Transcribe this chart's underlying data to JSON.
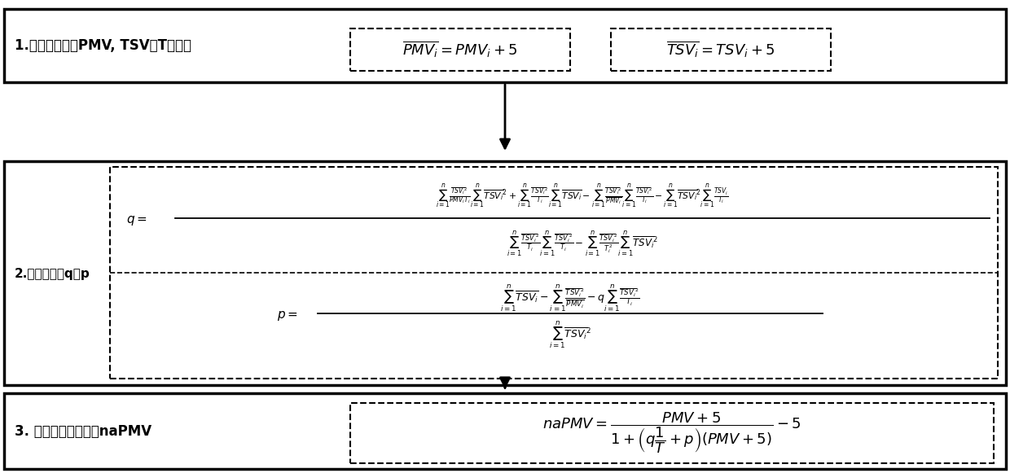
{
  "background_color": "#ffffff",
  "border_color": "#000000",
  "box1_label": "1.预处理采集的PMV, TSV和T数据组",
  "box2_label": "2.计算常参数q和p",
  "box3_label": "3. 构建新热舒适模型naPMV",
  "formula_pmv": "$\\overline{PMV_i} = PMV_i + 5$",
  "formula_tsv": "$\\overline{TSV_i} = TSV_i + 5$",
  "formula_q_num": "$\\sum_{i=1}^{n}\\frac{\\overline{TSV_i}^2}{PMV_iT_i}\\sum_{i=1}^{n}\\overline{TSV_i}^2 + \\sum_{i=1}^{n}\\frac{\\overline{TSV_i}^2}{T_i}\\sum_{i=1}^{n}\\overline{TSV_i} - \\sum_{i=1}^{n}\\frac{\\overline{TSV_i}^2}{\\overline{PMV_i}}\\sum_{i=1}^{n}\\frac{\\overline{TSV_i}^2}{T_i} - \\sum_{i=1}^{n}\\overline{TSV_i}^2\\sum_{i=1}^{n}\\frac{TSV_i}{T_i}$",
  "formula_q_den": "$\\sum_{i=1}^{n}\\frac{\\overline{TSV_i}^2}{T_i}\\sum_{i=1}^{n}\\frac{\\overline{TSV_i}^2}{T_i} - \\sum_{i=1}^{n}\\frac{\\overline{TSV_i}^2}{T_i^2}\\sum_{i=1}^{n}\\overline{TSV_i}^2$",
  "formula_p_num": "$\\sum_{i=1}^{n}\\overline{TSV_i} - \\sum_{i=1}^{n}\\frac{\\overline{TSV_i}^2}{\\overline{PMV_i}} - q\\sum_{i=1}^{n}\\frac{\\overline{TSV_i}^2}{T_i}$",
  "formula_p_den": "$\\sum_{i=1}^{n}\\overline{TSV_i}^2$",
  "formula_napmv": "$naPMV = \\dfrac{PMV+5}{1+\\left(q\\dfrac{1}{T}+p\\right)(PMV+5)} - 5$"
}
